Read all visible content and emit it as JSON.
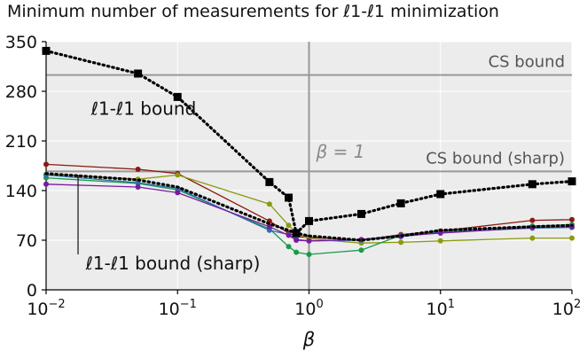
{
  "chart_data": {
    "type": "line",
    "title": "Minimum number of measurements for ℓ1-ℓ1 minimization",
    "xlabel": "β",
    "ylabel": "",
    "xscale": "log",
    "xlim": [
      0.01,
      100
    ],
    "ylim": [
      0,
      350
    ],
    "grid": true,
    "yticks": [
      0,
      70,
      140,
      210,
      280,
      350
    ],
    "ytick_labels": [
      "0",
      "70",
      "140",
      "210",
      "280",
      "350"
    ],
    "xticks": [
      0.01,
      0.1,
      1,
      10,
      100
    ],
    "xtick_labels": [
      {
        "base": "10",
        "exp": "−2"
      },
      {
        "base": "10",
        "exp": "−1"
      },
      {
        "base": "10",
        "exp": "0"
      },
      {
        "base": "10",
        "exp": "1"
      },
      {
        "base": "10",
        "exp": "2"
      }
    ],
    "x": [
      0.01,
      0.05,
      0.1,
      0.5,
      0.7,
      0.8,
      1,
      2.5,
      5,
      10,
      50,
      100
    ],
    "series": [
      {
        "name": "ℓ1-ℓ1 bound",
        "color": "#000000",
        "style": "dotted",
        "marker": "square",
        "values": [
          337,
          305,
          272,
          152,
          130,
          80,
          97,
          107,
          122,
          135,
          149,
          153
        ]
      },
      {
        "name": "ℓ1-ℓ1 bound (sharp)",
        "color": "#000000",
        "style": "dotted",
        "marker": "none",
        "values": [
          164,
          155,
          145,
          93,
          84,
          80,
          76,
          70,
          76,
          84,
          89,
          91
        ]
      },
      {
        "name": "",
        "color": "#8b1a10",
        "style": "solid",
        "marker": "dot",
        "values": [
          177,
          170,
          164,
          97,
          80,
          75,
          74,
          70,
          78,
          83,
          98,
          99
        ]
      },
      {
        "name": "",
        "color": "#8c9a10",
        "style": "solid",
        "marker": "dot",
        "values": [
          163,
          156,
          162,
          121,
          91,
          80,
          72,
          66,
          67,
          69,
          73,
          73
        ]
      },
      {
        "name": "",
        "color": "#1a9a4a",
        "style": "solid",
        "marker": "dot",
        "values": [
          158,
          150,
          141,
          86,
          61,
          53,
          50,
          56,
          77,
          82,
          90,
          92
        ]
      },
      {
        "name": "",
        "color": "#2a6fb0",
        "style": "solid",
        "marker": "dot",
        "values": [
          162,
          151,
          143,
          84,
          78,
          71,
          69,
          70,
          75,
          81,
          87,
          88
        ]
      },
      {
        "name": "",
        "color": "#7a1aa0",
        "style": "solid",
        "marker": "dot",
        "values": [
          149,
          145,
          137,
          89,
          77,
          70,
          69,
          71,
          76,
          80,
          88,
          89
        ]
      }
    ],
    "hlines": [
      {
        "y": 303,
        "label": "CS bound",
        "color": "#999999"
      },
      {
        "y": 167,
        "label": "CS bound (sharp)",
        "color": "#999999"
      }
    ],
    "vlines": [
      {
        "x": 1,
        "label": "β = 1",
        "color": "#999999"
      }
    ],
    "annotations": [
      {
        "text": "ℓ1-ℓ1 bound",
        "x": 0.022,
        "y": 247
      },
      {
        "text": "ℓ1-ℓ1 bound (sharp)",
        "x": 0.02,
        "y": 29,
        "arrow_to": [
          0.0175,
          162
        ]
      }
    ]
  }
}
